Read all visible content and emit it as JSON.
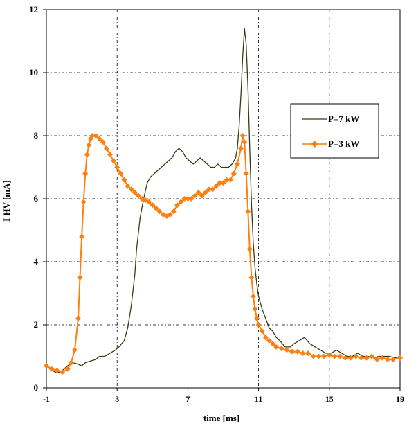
{
  "chart_data": {
    "type": "line",
    "xlabel": "time [ms]",
    "ylabel": "I HV [mA]",
    "xlim": [
      -1,
      19
    ],
    "ylim": [
      0,
      12
    ],
    "xticks": [
      "-1",
      "3",
      "7",
      "11",
      "15",
      "19"
    ],
    "yticks": [
      "0",
      "2",
      "4",
      "6",
      "8",
      "10",
      "12"
    ],
    "grid": true,
    "legend_position": "right",
    "series": [
      {
        "name": "P=7 kW",
        "color": "#3a3a10",
        "marker": "none",
        "x": [
          -1.0,
          -0.8,
          -0.5,
          -0.2,
          0.0,
          0.2,
          0.5,
          0.8,
          1.0,
          1.2,
          1.5,
          1.8,
          2.0,
          2.3,
          2.6,
          2.9,
          3.1,
          3.4,
          3.6,
          3.8,
          4.0,
          4.1,
          4.3,
          4.5,
          4.7,
          4.9,
          5.1,
          5.3,
          5.5,
          5.7,
          5.9,
          6.1,
          6.3,
          6.5,
          6.7,
          6.9,
          7.1,
          7.3,
          7.5,
          7.7,
          7.9,
          8.1,
          8.3,
          8.5,
          8.7,
          8.9,
          9.1,
          9.3,
          9.5,
          9.7,
          9.8,
          9.9,
          10.0,
          10.1,
          10.2,
          10.3,
          10.4,
          10.5,
          10.6,
          10.7,
          10.8,
          10.9,
          11.0,
          11.2,
          11.4,
          11.6,
          11.8,
          12.0,
          12.2,
          12.5,
          12.8,
          13.0,
          13.3,
          13.6,
          13.9,
          14.2,
          14.5,
          14.8,
          15.1,
          15.4,
          15.7,
          16.0,
          16.3,
          16.6,
          16.9,
          17.2,
          17.5,
          17.8,
          18.1,
          18.4,
          18.7,
          19.0
        ],
        "values": [
          0.7,
          0.6,
          0.5,
          0.5,
          0.6,
          0.7,
          0.8,
          0.75,
          0.7,
          0.8,
          0.85,
          0.9,
          1.0,
          1.0,
          1.1,
          1.2,
          1.3,
          1.5,
          1.9,
          2.6,
          3.6,
          4.4,
          5.4,
          6.0,
          6.5,
          6.7,
          6.8,
          6.9,
          7.0,
          7.1,
          7.2,
          7.3,
          7.5,
          7.6,
          7.5,
          7.3,
          7.2,
          7.1,
          7.2,
          7.3,
          7.2,
          7.1,
          7.0,
          7.0,
          7.1,
          7.0,
          7.0,
          7.0,
          7.1,
          7.3,
          7.6,
          8.3,
          9.3,
          10.5,
          11.4,
          10.9,
          9.5,
          7.6,
          5.8,
          4.6,
          3.8,
          3.3,
          2.9,
          2.5,
          2.2,
          1.9,
          1.8,
          1.6,
          1.5,
          1.3,
          1.3,
          1.4,
          1.5,
          1.6,
          1.4,
          1.3,
          1.2,
          1.1,
          1.1,
          1.2,
          1.1,
          1.0,
          1.0,
          1.1,
          1.0,
          1.0,
          0.95,
          1.0,
          1.0,
          1.0,
          0.95,
          1.0
        ]
      },
      {
        "name": "P=3 kW",
        "color": "#ff7f0e",
        "marker": "diamond",
        "x": [
          -1.0,
          -0.7,
          -0.4,
          -0.1,
          0.2,
          0.4,
          0.6,
          0.8,
          0.9,
          1.0,
          1.1,
          1.2,
          1.3,
          1.4,
          1.5,
          1.6,
          1.8,
          2.0,
          2.2,
          2.4,
          2.6,
          2.8,
          3.0,
          3.2,
          3.4,
          3.6,
          3.8,
          4.0,
          4.2,
          4.4,
          4.6,
          4.8,
          5.0,
          5.2,
          5.4,
          5.6,
          5.8,
          6.0,
          6.2,
          6.4,
          6.6,
          6.8,
          7.0,
          7.2,
          7.4,
          7.6,
          7.8,
          8.0,
          8.2,
          8.4,
          8.6,
          8.8,
          9.0,
          9.2,
          9.4,
          9.6,
          9.8,
          10.0,
          10.1,
          10.2,
          10.3,
          10.4,
          10.5,
          10.6,
          10.7,
          10.8,
          10.9,
          11.0,
          11.2,
          11.4,
          11.6,
          11.8,
          12.0,
          12.3,
          12.6,
          12.9,
          13.2,
          13.5,
          13.8,
          14.1,
          14.4,
          14.7,
          15.0,
          15.3,
          15.6,
          15.9,
          16.2,
          16.5,
          16.8,
          17.1,
          17.4,
          17.7,
          18.0,
          18.3,
          18.6,
          19.0
        ],
        "values": [
          0.7,
          0.6,
          0.55,
          0.5,
          0.6,
          0.8,
          1.2,
          2.2,
          3.5,
          4.8,
          5.9,
          6.8,
          7.4,
          7.7,
          7.9,
          8.0,
          8.0,
          7.9,
          7.8,
          7.6,
          7.4,
          7.2,
          7.0,
          6.8,
          6.6,
          6.4,
          6.3,
          6.2,
          6.1,
          6.0,
          5.95,
          5.9,
          5.8,
          5.7,
          5.6,
          5.5,
          5.45,
          5.5,
          5.6,
          5.8,
          5.9,
          6.0,
          6.0,
          6.0,
          6.1,
          6.2,
          6.1,
          6.2,
          6.3,
          6.3,
          6.4,
          6.5,
          6.5,
          6.6,
          6.6,
          6.8,
          7.1,
          7.6,
          8.0,
          7.8,
          6.8,
          5.6,
          4.4,
          3.5,
          2.9,
          2.5,
          2.2,
          2.0,
          1.8,
          1.6,
          1.5,
          1.4,
          1.3,
          1.25,
          1.2,
          1.15,
          1.15,
          1.1,
          1.1,
          1.0,
          1.0,
          1.0,
          1.05,
          1.0,
          1.0,
          0.95,
          0.95,
          1.0,
          0.95,
          0.95,
          1.0,
          0.9,
          0.95,
          0.9,
          0.9,
          0.95
        ]
      }
    ]
  }
}
